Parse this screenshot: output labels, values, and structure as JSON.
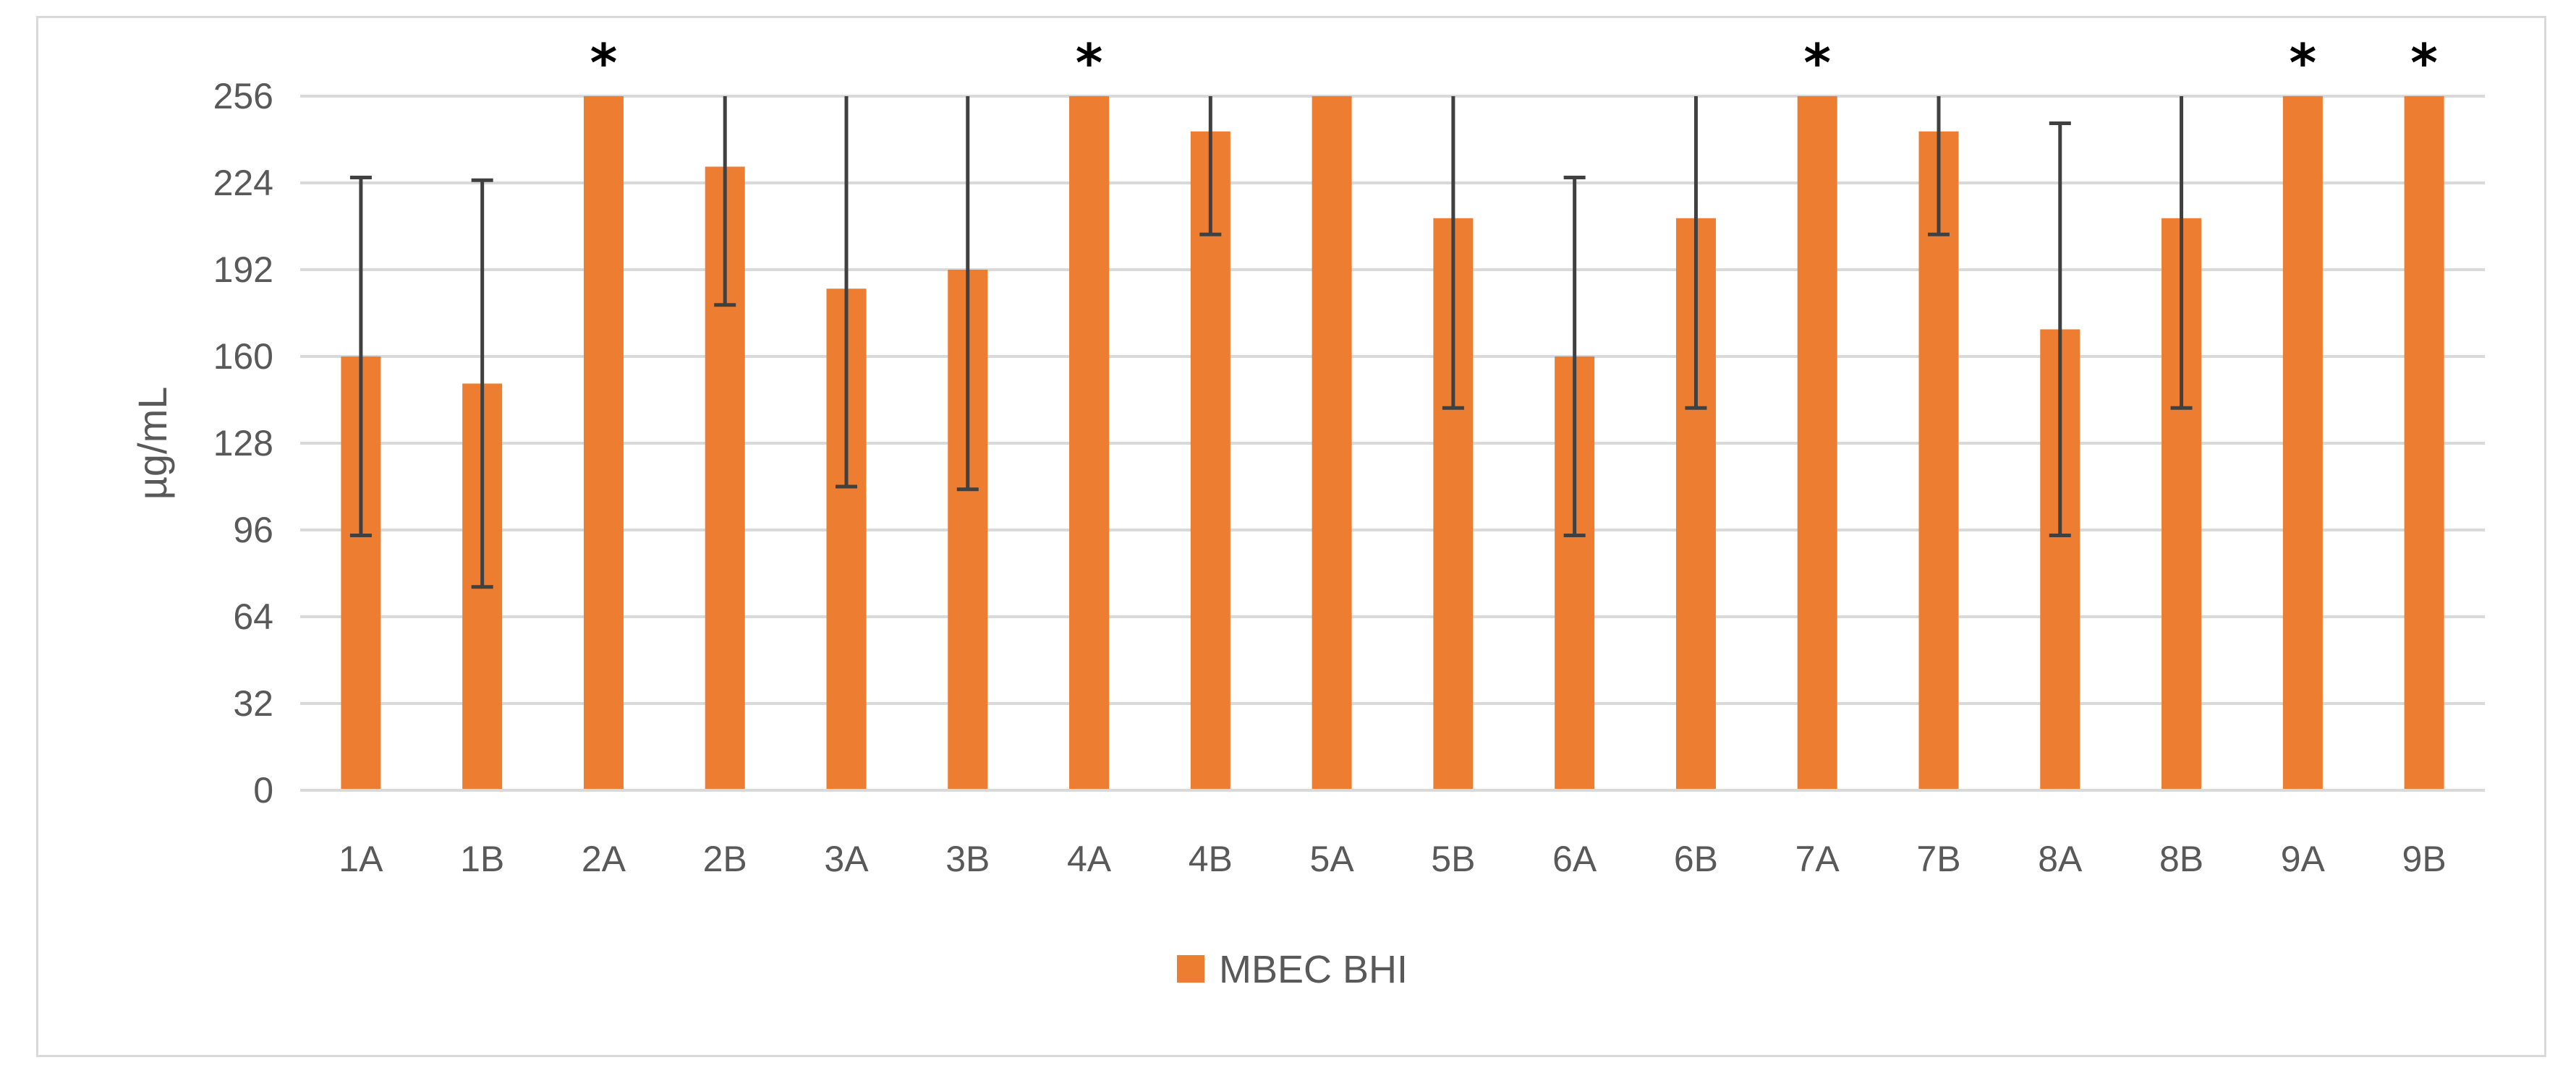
{
  "chart_data": {
    "type": "bar",
    "categories": [
      "1A",
      "1B",
      "2A",
      "2B",
      "3A",
      "3B",
      "4A",
      "4B",
      "5A",
      "5B",
      "6A",
      "6B",
      "7A",
      "7B",
      "8A",
      "8B",
      "9A",
      "9B"
    ],
    "series": [
      {
        "name": "MBEC BHI",
        "color": "#ed7d31",
        "values": [
          160,
          150,
          256,
          230,
          185,
          192,
          256,
          243,
          256,
          211,
          160,
          211,
          256,
          243,
          170,
          211,
          256,
          256
        ],
        "error": [
          66,
          75,
          0,
          51,
          73,
          81,
          0,
          38,
          0,
          70,
          66,
          70,
          0,
          38,
          76,
          70,
          0,
          0
        ]
      }
    ],
    "significant": [
      false,
      false,
      true,
      false,
      false,
      false,
      true,
      false,
      false,
      false,
      false,
      false,
      true,
      false,
      false,
      false,
      true,
      true
    ],
    "significance_marker": "*",
    "title": "",
    "xlabel": "",
    "ylabel": "µg/mL",
    "ylim": [
      0,
      256
    ],
    "yticks": [
      0,
      32,
      64,
      96,
      128,
      160,
      192,
      224,
      256
    ],
    "grid": true,
    "legend": "bottom-center"
  }
}
